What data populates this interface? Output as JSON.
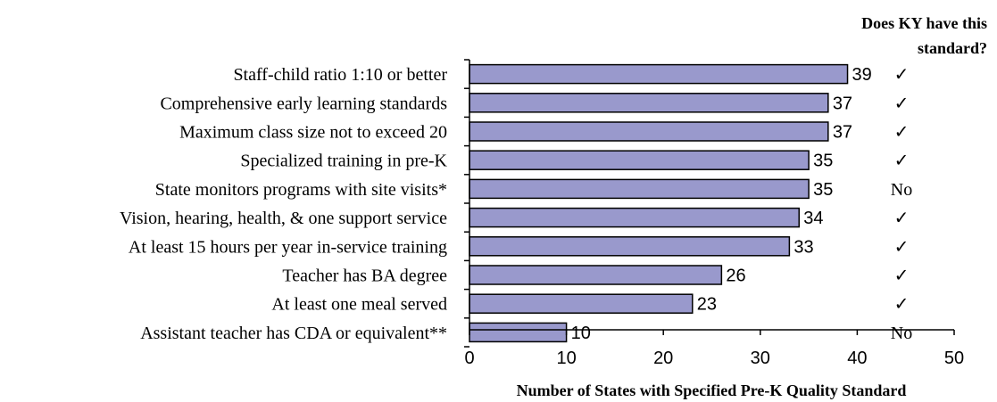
{
  "chart_data": {
    "type": "bar",
    "orientation": "horizontal",
    "title": "",
    "xlabel": "Number of States with Specified Pre-K Quality Standard",
    "ylabel": "",
    "xlim": [
      0,
      50
    ],
    "xticks": [
      0,
      10,
      20,
      30,
      40,
      50
    ],
    "grid": false,
    "legend": "none",
    "categories": [
      "Staff-child ratio 1:10 or better",
      "Comprehensive early learning standards",
      "Maximum class size not to exceed 20",
      "Specialized training in pre-K",
      "State monitors programs with site visits*",
      "Vision, hearing, health, & one support service",
      "At least 15 hours per year in-service training",
      "Teacher has BA degree",
      "At least one meal served",
      "Assistant teacher has CDA or equivalent**"
    ],
    "values": [
      39,
      37,
      37,
      35,
      35,
      34,
      33,
      26,
      23,
      10
    ],
    "ky_column_header": [
      "Does KY have this",
      "standard?"
    ],
    "ky_has_standard": [
      "✓",
      "✓",
      "✓",
      "✓",
      "No",
      "✓",
      "✓",
      "✓",
      "✓",
      "No"
    ],
    "colors": {
      "bar_fill": "#9999CC",
      "bar_stroke": "#000000",
      "axis": "#000000"
    }
  }
}
